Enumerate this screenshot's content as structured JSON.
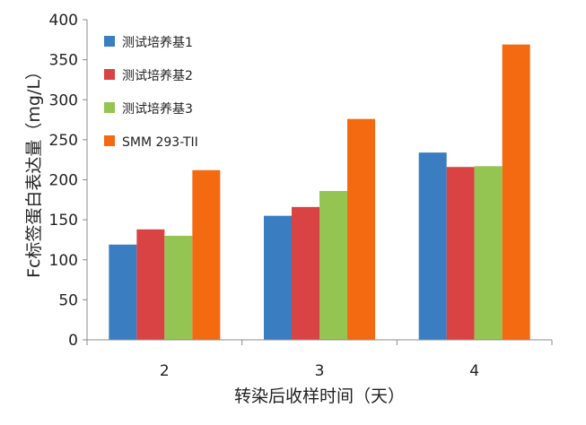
{
  "chart_data": {
    "type": "bar",
    "title": "",
    "xlabel": "转染后收样时间（天）",
    "ylabel": "Fc标签蛋白表达量（mg/L）",
    "categories": [
      "2",
      "3",
      "4"
    ],
    "ylim": [
      0,
      400
    ],
    "yticks": [
      0,
      50,
      100,
      150,
      200,
      250,
      300,
      350,
      400
    ],
    "grid": false,
    "legend_position": "top-left",
    "series": [
      {
        "name": "测试培养基1",
        "color": "#3A7DC1",
        "values": [
          119,
          155,
          234
        ]
      },
      {
        "name": "测试培养基2",
        "color": "#D94343",
        "values": [
          138,
          166,
          216
        ]
      },
      {
        "name": "测试培养基3",
        "color": "#94C552",
        "values": [
          130,
          186,
          217
        ]
      },
      {
        "name": "SMM 293-TII",
        "color": "#F36A10",
        "values": [
          212,
          276,
          369
        ]
      }
    ]
  }
}
